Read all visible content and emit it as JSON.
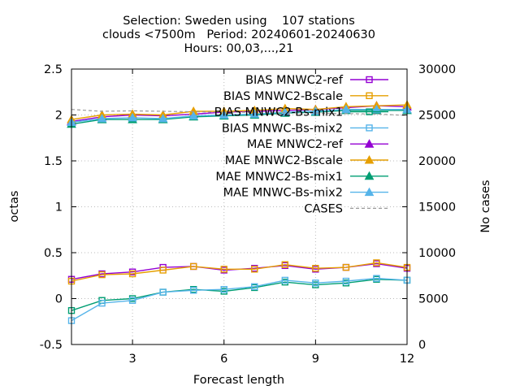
{
  "chart_data": {
    "type": "line",
    "title_lines": [
      "Selection: Sweden using    107 stations",
      "clouds <7500m   Period: 20240601-20240630",
      "Hours: 00,03,...,21"
    ],
    "xlabel": "Forecast length",
    "ylabel": "octas",
    "y2label": "No cases",
    "xlim": [
      1,
      12
    ],
    "ylim": [
      -0.5,
      2.5
    ],
    "y2lim": [
      0,
      30000
    ],
    "xticks": [
      3,
      6,
      9,
      12
    ],
    "yticks": [
      -0.5,
      0,
      0.5,
      1,
      1.5,
      2,
      2.5
    ],
    "y2ticks": [
      0,
      5000,
      10000,
      15000,
      20000,
      25000,
      30000
    ],
    "ytick_labels": [
      "-0.5",
      "0",
      "0.5",
      "1",
      "1.5",
      "2",
      "2.5"
    ],
    "y2tick_labels": [
      "0",
      "5000",
      "10000",
      "15000",
      "20000",
      "25000",
      "30000"
    ],
    "grid": true,
    "legend_position": "top-right",
    "x": [
      1,
      2,
      3,
      4,
      5,
      6,
      7,
      8,
      9,
      10,
      11,
      12
    ],
    "series": [
      {
        "name": "BIAS MNWC2-ref",
        "color": "#9400d3",
        "marker": "square",
        "values": [
          0.21,
          0.27,
          0.29,
          0.34,
          0.35,
          0.31,
          0.33,
          0.36,
          0.32,
          0.34,
          0.38,
          0.33
        ]
      },
      {
        "name": "BIAS MNWC2-Bscale",
        "color": "#e69f00",
        "marker": "square",
        "values": [
          0.19,
          0.26,
          0.27,
          0.31,
          0.35,
          0.32,
          0.32,
          0.37,
          0.33,
          0.34,
          0.39,
          0.34
        ]
      },
      {
        "name": "BIAS MNWC2-Bs-mix1",
        "color": "#009e73",
        "marker": "square",
        "values": [
          -0.13,
          -0.02,
          0.0,
          0.07,
          0.1,
          0.08,
          0.12,
          0.18,
          0.15,
          0.17,
          0.21,
          0.2
        ]
      },
      {
        "name": "BIAS MNWC-Bs-mix2",
        "color": "#56b4e9",
        "marker": "square",
        "values": [
          -0.24,
          -0.05,
          -0.02,
          0.07,
          0.09,
          0.1,
          0.13,
          0.2,
          0.17,
          0.19,
          0.22,
          0.2
        ]
      },
      {
        "name": "MAE MNWC2-ref",
        "color": "#9400d3",
        "marker": "triangle",
        "values": [
          1.93,
          1.98,
          2.0,
          1.99,
          2.01,
          2.03,
          2.04,
          2.05,
          2.06,
          2.08,
          2.1,
          2.09
        ]
      },
      {
        "name": "MAE MNWC2-Bscale",
        "color": "#e69f00",
        "marker": "triangle",
        "values": [
          1.95,
          2.0,
          2.01,
          2.0,
          2.04,
          2.04,
          2.05,
          2.07,
          2.06,
          2.09,
          2.1,
          2.11
        ]
      },
      {
        "name": "MAE MNWC2-Bs-mix1",
        "color": "#009e73",
        "marker": "triangle",
        "values": [
          1.9,
          1.95,
          1.95,
          1.95,
          1.98,
          1.99,
          2.0,
          2.02,
          2.03,
          2.05,
          2.05,
          2.05
        ]
      },
      {
        "name": "MAE MNWC-Bs-mix2",
        "color": "#56b4e9",
        "marker": "triangle",
        "values": [
          1.92,
          1.96,
          1.97,
          1.96,
          1.99,
          2.0,
          2.01,
          2.03,
          2.04,
          2.06,
          2.06,
          2.06
        ]
      },
      {
        "name": "CASES",
        "color": "#999999",
        "marker": "none",
        "dashed": true,
        "axis": "y2",
        "values": [
          25600,
          25400,
          25450,
          25400,
          25350,
          25300,
          25300,
          25250,
          25200,
          25150,
          25100,
          24950
        ]
      }
    ]
  }
}
